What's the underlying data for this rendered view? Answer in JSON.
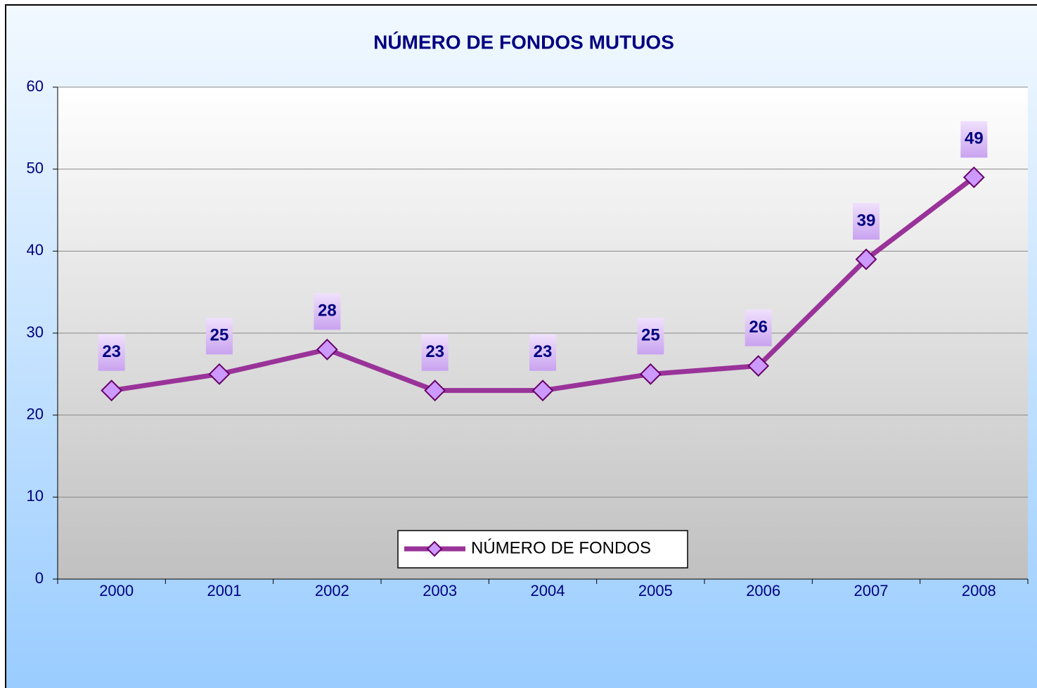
{
  "chart_data": {
    "type": "line",
    "title": "NÚMERO DE FONDOS MUTUOS",
    "categories": [
      "2000",
      "2001",
      "2002",
      "2003",
      "2004",
      "2005",
      "2006",
      "2007",
      "2008"
    ],
    "series": [
      {
        "name": "NÚMERO DE FONDOS",
        "color": "#993399",
        "values": [
          23,
          25,
          28,
          23,
          23,
          25,
          26,
          39,
          49
        ]
      }
    ],
    "ylim": [
      0,
      60
    ],
    "yticks": [
      0,
      10,
      20,
      30,
      40,
      50,
      60
    ],
    "grid": true,
    "legend": "bottom"
  }
}
